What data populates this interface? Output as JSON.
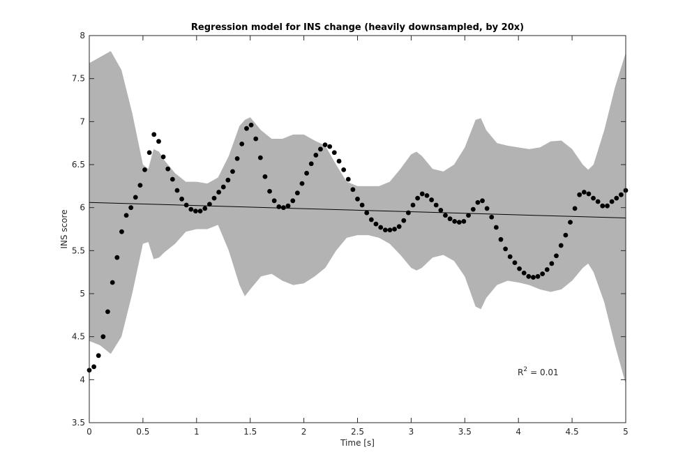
{
  "chart_data": {
    "type": "scatter",
    "title": "Regression model for INS change (heavily downsampled, by 20x)",
    "xlabel": "Time [s]",
    "ylabel": "INS score",
    "xlim": [
      0,
      5
    ],
    "ylim": [
      3.5,
      8
    ],
    "xticks": [
      0,
      0.5,
      1,
      1.5,
      2,
      2.5,
      3,
      3.5,
      4,
      4.5,
      5
    ],
    "yticks": [
      3.5,
      4,
      4.5,
      5,
      5.5,
      6,
      6.5,
      7,
      7.5,
      8
    ],
    "annotation": {
      "base": "R",
      "superscript": "2",
      "text": "= 0.01"
    },
    "band": {
      "color": "#b3b3b3",
      "x": [
        0,
        0.1,
        0.2,
        0.3,
        0.4,
        0.5,
        0.55,
        0.6,
        0.65,
        0.7,
        0.8,
        0.9,
        1.0,
        1.1,
        1.2,
        1.3,
        1.4,
        1.45,
        1.5,
        1.6,
        1.7,
        1.8,
        1.9,
        2.0,
        2.1,
        2.2,
        2.3,
        2.4,
        2.5,
        2.6,
        2.7,
        2.8,
        2.9,
        3.0,
        3.05,
        3.1,
        3.2,
        3.3,
        3.4,
        3.5,
        3.6,
        3.65,
        3.7,
        3.8,
        3.9,
        4.0,
        4.1,
        4.2,
        4.3,
        4.4,
        4.5,
        4.6,
        4.65,
        4.7,
        4.8,
        4.9,
        5.0
      ],
      "upper": [
        7.68,
        7.75,
        7.82,
        7.6,
        7.1,
        6.5,
        6.45,
        6.68,
        6.65,
        6.55,
        6.4,
        6.3,
        6.3,
        6.28,
        6.35,
        6.6,
        6.95,
        7.02,
        7.05,
        6.9,
        6.8,
        6.8,
        6.85,
        6.85,
        6.78,
        6.72,
        6.5,
        6.3,
        6.25,
        6.25,
        6.25,
        6.3,
        6.45,
        6.62,
        6.65,
        6.6,
        6.45,
        6.42,
        6.5,
        6.7,
        7.02,
        7.04,
        6.9,
        6.75,
        6.72,
        6.7,
        6.68,
        6.7,
        6.77,
        6.78,
        6.68,
        6.5,
        6.44,
        6.5,
        6.9,
        7.4,
        7.8
      ],
      "lower": [
        4.45,
        4.4,
        4.3,
        4.5,
        5.0,
        5.58,
        5.6,
        5.4,
        5.42,
        5.48,
        5.58,
        5.72,
        5.75,
        5.75,
        5.8,
        5.5,
        5.1,
        4.97,
        5.05,
        5.2,
        5.23,
        5.15,
        5.1,
        5.12,
        5.2,
        5.3,
        5.5,
        5.65,
        5.68,
        5.68,
        5.65,
        5.58,
        5.45,
        5.3,
        5.27,
        5.3,
        5.42,
        5.45,
        5.38,
        5.2,
        4.85,
        4.82,
        4.95,
        5.1,
        5.15,
        5.13,
        5.1,
        5.05,
        5.02,
        5.05,
        5.15,
        5.3,
        5.35,
        5.25,
        4.9,
        4.4,
        3.95
      ]
    },
    "fit": {
      "color": "#000000",
      "x": [
        0,
        5
      ],
      "y": [
        6.06,
        5.88
      ]
    },
    "points": {
      "color": "#000000",
      "x": [
        0,
        0.043,
        0.086,
        0.129,
        0.172,
        0.216,
        0.259,
        0.302,
        0.345,
        0.388,
        0.431,
        0.474,
        0.517,
        0.56,
        0.603,
        0.647,
        0.69,
        0.733,
        0.776,
        0.819,
        0.862,
        0.905,
        0.948,
        0.991,
        1.034,
        1.078,
        1.121,
        1.164,
        1.207,
        1.25,
        1.293,
        1.336,
        1.379,
        1.422,
        1.466,
        1.509,
        1.552,
        1.595,
        1.638,
        1.681,
        1.724,
        1.767,
        1.81,
        1.853,
        1.897,
        1.94,
        1.983,
        2.026,
        2.069,
        2.112,
        2.155,
        2.198,
        2.241,
        2.284,
        2.328,
        2.371,
        2.414,
        2.457,
        2.5,
        2.543,
        2.586,
        2.629,
        2.672,
        2.716,
        2.759,
        2.802,
        2.845,
        2.888,
        2.931,
        2.974,
        3.017,
        3.06,
        3.103,
        3.147,
        3.19,
        3.233,
        3.276,
        3.319,
        3.362,
        3.405,
        3.448,
        3.491,
        3.534,
        3.578,
        3.621,
        3.664,
        3.707,
        3.75,
        3.793,
        3.836,
        3.879,
        3.922,
        3.966,
        4.009,
        4.052,
        4.095,
        4.138,
        4.181,
        4.224,
        4.267,
        4.31,
        4.353,
        4.397,
        4.44,
        4.483,
        4.526,
        4.569,
        4.612,
        4.655,
        4.698,
        4.741,
        4.784,
        4.828,
        4.871,
        4.914,
        4.957,
        5.0
      ],
      "y": [
        4.11,
        4.15,
        4.28,
        4.5,
        4.79,
        5.13,
        5.42,
        5.72,
        5.91,
        6.0,
        6.12,
        6.26,
        6.44,
        6.64,
        6.85,
        6.77,
        6.59,
        6.45,
        6.33,
        6.2,
        6.1,
        6.03,
        5.98,
        5.96,
        5.96,
        5.99,
        6.04,
        6.11,
        6.18,
        6.24,
        6.32,
        6.42,
        6.57,
        6.74,
        6.92,
        6.96,
        6.8,
        6.58,
        6.36,
        6.19,
        6.08,
        6.01,
        6.0,
        6.02,
        6.08,
        6.17,
        6.28,
        6.4,
        6.51,
        6.61,
        6.68,
        6.73,
        6.71,
        6.64,
        6.54,
        6.44,
        6.33,
        6.21,
        6.1,
        6.03,
        5.94,
        5.86,
        5.81,
        5.77,
        5.74,
        5.74,
        5.75,
        5.78,
        5.85,
        5.94,
        6.03,
        6.11,
        6.16,
        6.14,
        6.09,
        6.03,
        5.97,
        5.91,
        5.87,
        5.84,
        5.83,
        5.84,
        5.91,
        5.98,
        6.06,
        6.08,
        5.99,
        5.89,
        5.77,
        5.63,
        5.52,
        5.43,
        5.36,
        5.29,
        5.24,
        5.2,
        5.19,
        5.2,
        5.23,
        5.28,
        5.35,
        5.44,
        5.56,
        5.68,
        5.83,
        5.99,
        6.15,
        6.18,
        6.16,
        6.11,
        6.07,
        6.02,
        6.02,
        6.07,
        6.11,
        6.15,
        6.2
      ]
    }
  }
}
